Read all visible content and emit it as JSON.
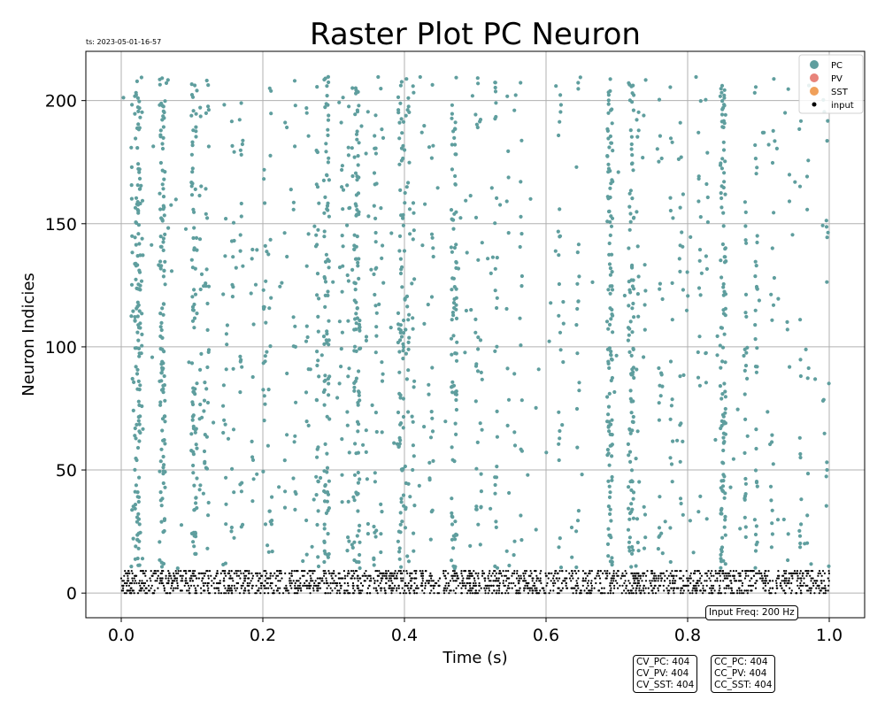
{
  "timestamp": "ts: 2023-05-01-16-57",
  "chart_data": {
    "type": "scatter",
    "title": "Raster Plot PC Neuron",
    "xlabel": "Time (s)",
    "ylabel": "Neuron Indicies",
    "xlim": [
      -0.05,
      1.05
    ],
    "ylim": [
      -10,
      220
    ],
    "xticks": [
      "0.0",
      "0.2",
      "0.4",
      "0.6",
      "0.8",
      "1.0"
    ],
    "yticks": [
      "0",
      "50",
      "100",
      "150",
      "200"
    ],
    "grid": true,
    "legend_position": "top-right",
    "series": [
      {
        "name": "PC",
        "color": "#5f9e9e",
        "marker_size": "medium",
        "neuron_range": [
          10,
          210
        ],
        "time_range": [
          0.0,
          1.0
        ],
        "dense_bursts_s": [
          0.023,
          0.058,
          0.103,
          0.29,
          0.333,
          0.395,
          0.47,
          0.69,
          0.72,
          0.85
        ]
      },
      {
        "name": "PV",
        "color": "#e8837a",
        "marker_size": "medium"
      },
      {
        "name": "SST",
        "color": "#f0a05a",
        "marker_size": "medium"
      },
      {
        "name": "input",
        "color": "#000000",
        "marker_size": "small",
        "neuron_range": [
          0,
          9
        ],
        "time_range": [
          0.0,
          1.0
        ],
        "rate_hz": 200
      }
    ],
    "annotations": {
      "input_freq": "Input Freq: 200 Hz",
      "cv": [
        "CV_PC: 404",
        "CV_PV: 404",
        "CV_SST: 404"
      ],
      "cc": [
        "CC_PC: 404",
        "CC_PV: 404",
        "CC_SST: 404"
      ]
    }
  }
}
